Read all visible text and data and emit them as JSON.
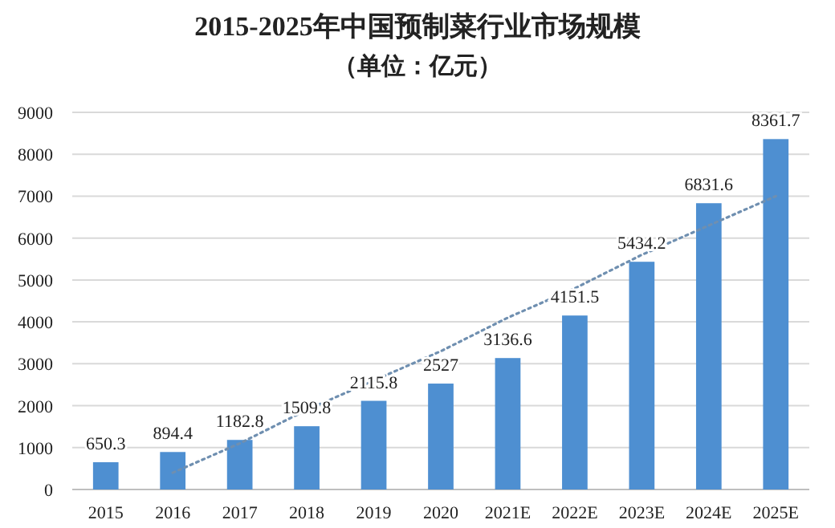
{
  "chart_data": {
    "type": "bar",
    "title": "2015-2025年中国预制菜行业市场规模",
    "subtitle": "（单位：亿元）",
    "categories": [
      "2015",
      "2016",
      "2017",
      "2018",
      "2019",
      "2020",
      "2021E",
      "2022E",
      "2023E",
      "2024E",
      "2025E"
    ],
    "series": [
      {
        "color": "#4e8fd1",
        "values": [
          650.3,
          894.4,
          1182.8,
          1509.8,
          2115.8,
          2527,
          3136.6,
          4151.5,
          5434.2,
          6831.6,
          8361.7
        ],
        "value_labels": [
          "650.3",
          "894.4",
          "1182.8",
          "1509.8",
          "2115.8",
          "2527",
          "3136.6",
          "4151.5",
          "5434.2",
          "6831.6",
          "8361.7"
        ]
      },
      {
        "type": "line",
        "color": "#6f8fb0",
        "line_style": "dotted",
        "values": [
          null,
          400,
          1100,
          1900,
          2600,
          3300,
          4100,
          4800,
          5600,
          6300,
          7000
        ]
      }
    ],
    "ylim": [
      0,
      9000
    ],
    "yticks": [
      0,
      1000,
      2000,
      3000,
      4000,
      5000,
      6000,
      7000,
      8000,
      9000
    ],
    "grid": "y",
    "marker": "none"
  }
}
